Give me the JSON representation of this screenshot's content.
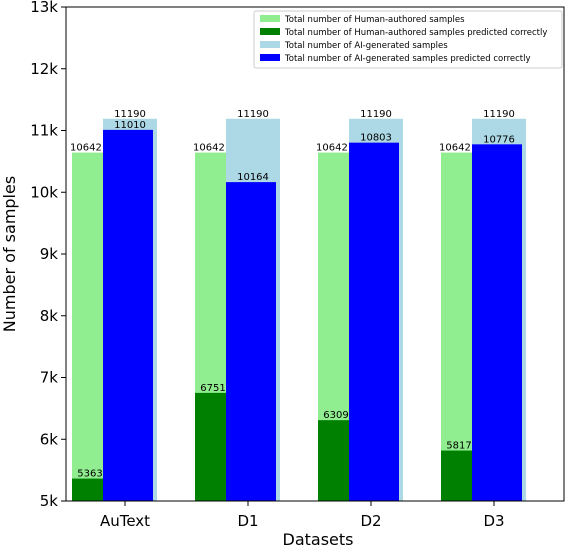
{
  "chart_data": {
    "type": "bar",
    "xlabel": "Datasets",
    "ylabel": "Number of samples",
    "ylim": [
      5000,
      13000
    ],
    "yticks": [
      5000,
      6000,
      7000,
      8000,
      9000,
      10000,
      11000,
      12000,
      13000
    ],
    "ytick_labels": [
      "5k",
      "6k",
      "7k",
      "8k",
      "9k",
      "10k",
      "11k",
      "12k",
      "13k"
    ],
    "categories": [
      "AuText",
      "D1",
      "D2",
      "D3"
    ],
    "grid": false,
    "legend_position": "top-right",
    "series": [
      {
        "name": "Total number of Human-authored samples",
        "values": [
          10642,
          10642,
          10642,
          10642
        ],
        "color": "#90ee90",
        "group": "human",
        "layer": "back"
      },
      {
        "name": "Total number of Human-authored samples predicted correctly",
        "values": [
          5363,
          6751,
          6309,
          5817
        ],
        "color": "#008000",
        "group": "human",
        "layer": "front"
      },
      {
        "name": "Total number of AI-generated samples",
        "values": [
          11190,
          11190,
          11190,
          11190
        ],
        "color": "#add8e6",
        "group": "ai",
        "layer": "back"
      },
      {
        "name": "Total number of AI-generated samples predicted correctly",
        "values": [
          11010,
          10164,
          10803,
          10776
        ],
        "color": "#0000ff",
        "group": "ai",
        "layer": "front"
      }
    ]
  }
}
